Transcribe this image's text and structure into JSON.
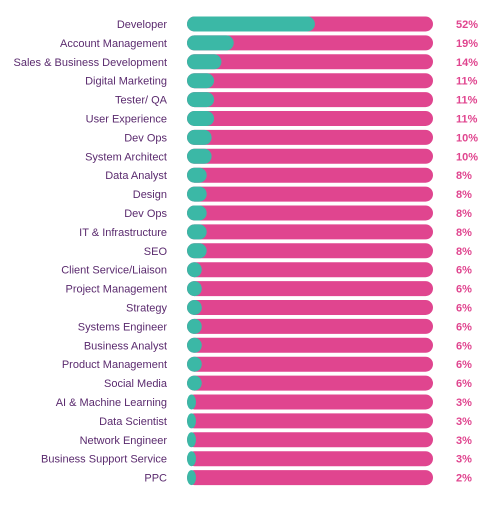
{
  "colors": {
    "track": "#e0458f",
    "fill": "#3bb8a6",
    "label": "#5a2a6e",
    "value": "#e0458f"
  },
  "chart_data": {
    "type": "bar",
    "orientation": "horizontal",
    "title": "",
    "xlabel": "",
    "ylabel": "",
    "xlim": [
      0,
      100
    ],
    "grid": false,
    "categories": [
      "Developer",
      "Account Management",
      "Sales & Business Development",
      "Digital Marketing",
      "Tester/ QA",
      "User Experience",
      "Dev Ops",
      "System Architect",
      "Data Analyst",
      "Design",
      "Dev Ops",
      "IT & Infrastructure",
      "SEO",
      "Client Service/Liaison",
      "Project Management",
      "Strategy",
      "Systems Engineer",
      "Business Analyst",
      "Product Management",
      "Social Media",
      "AI & Machine Learning",
      "Data Scientist",
      "Network Engineer",
      "Business Support Service",
      "PPC"
    ],
    "values": [
      52,
      19,
      14,
      11,
      11,
      11,
      10,
      10,
      8,
      8,
      8,
      8,
      8,
      6,
      6,
      6,
      6,
      6,
      6,
      6,
      3,
      3,
      3,
      3,
      2
    ],
    "value_labels": [
      "52%",
      "19%",
      "14%",
      "11%",
      "11%",
      "11%",
      "10%",
      "10%",
      "8%",
      "8%",
      "8%",
      "8%",
      "8%",
      "6%",
      "6%",
      "6%",
      "6%",
      "6%",
      "6%",
      "6%",
      "3%",
      "3%",
      "3%",
      "3%",
      "2%"
    ]
  }
}
